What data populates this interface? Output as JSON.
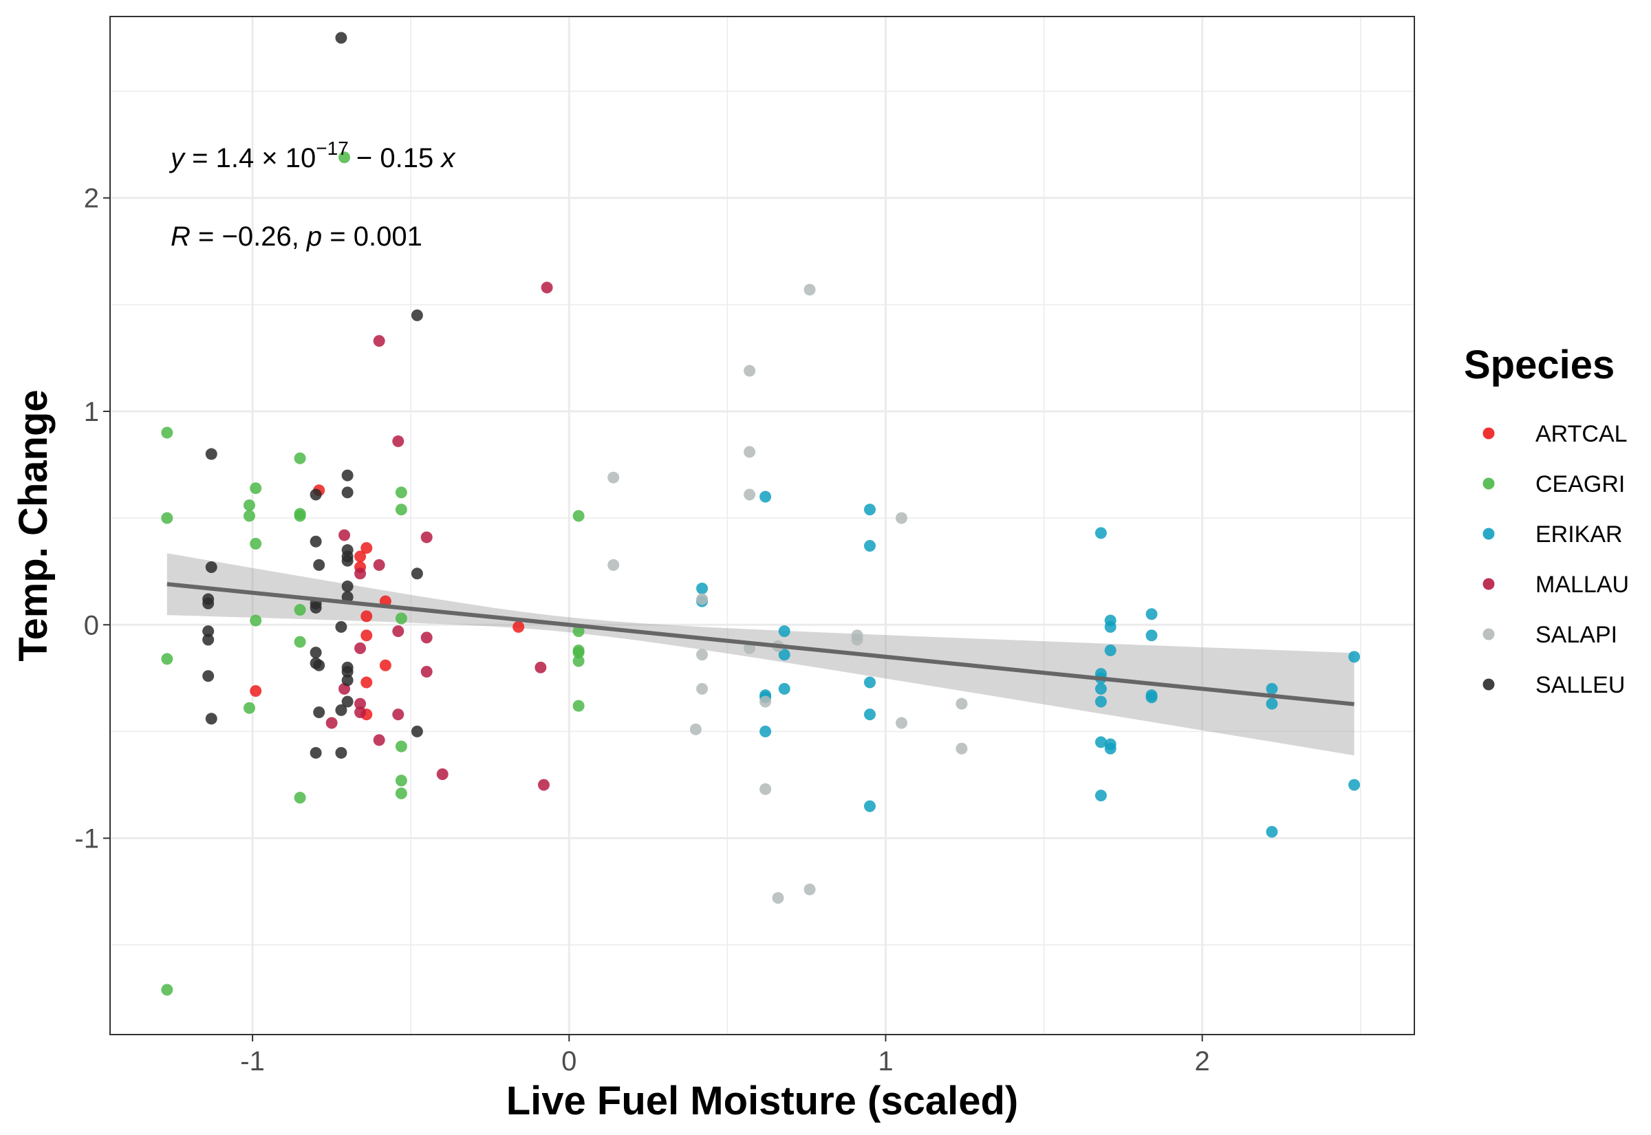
{
  "chart_data": {
    "type": "scatter",
    "xlabel": "Live Fuel Moisture (scaled)",
    "ylabel": "Temp. Change",
    "xlim": [
      -1.45,
      2.67
    ],
    "ylim": [
      -1.92,
      2.85
    ],
    "x_ticks": [
      -1,
      0,
      1,
      2
    ],
    "y_ticks": [
      -1,
      0,
      1,
      2
    ],
    "x_tick_labels": [
      "-1",
      "0",
      "1",
      "2"
    ],
    "y_tick_labels": [
      "-1",
      "0",
      "1",
      "2"
    ],
    "grid": true,
    "legend": {
      "title": "Species",
      "position": "right"
    },
    "annotation": {
      "equation": {
        "lhs": "y",
        "eq": " = 1.4 × 10",
        "exp": "−17",
        "rest": " − 0.15 ",
        "var": "x"
      },
      "stats": {
        "r": "R",
        "r_text": " = −0.26, ",
        "p": "p",
        "p_text": " = 0.001"
      }
    },
    "regression": {
      "intercept": 0.0,
      "slope": -0.15,
      "x_range": [
        -1.27,
        2.48
      ],
      "ci_low": [
        0.05,
        -0.62
      ],
      "ci_high": [
        0.34,
        -0.14
      ]
    },
    "series": [
      {
        "name": "ARTCAL",
        "color": "#ee1c1c",
        "points": [
          [
            -0.79,
            0.63
          ],
          [
            -0.66,
            0.32
          ],
          [
            -0.64,
            0.36
          ],
          [
            -0.66,
            0.27
          ],
          [
            -0.58,
            0.11
          ],
          [
            -0.64,
            0.04
          ],
          [
            -0.64,
            -0.05
          ],
          [
            -0.58,
            -0.19
          ],
          [
            -0.64,
            -0.27
          ],
          [
            -0.64,
            -0.42
          ],
          [
            -0.99,
            -0.31
          ],
          [
            -0.16,
            -0.01
          ]
        ]
      },
      {
        "name": "CEAGRI",
        "color": "#4cb848",
        "points": [
          [
            -1.27,
            0.9
          ],
          [
            -1.27,
            0.5
          ],
          [
            -1.27,
            -0.16
          ],
          [
            -1.27,
            -1.71
          ],
          [
            -1.01,
            0.56
          ],
          [
            -1.01,
            0.51
          ],
          [
            -0.99,
            0.64
          ],
          [
            -0.99,
            0.38
          ],
          [
            -0.99,
            0.02
          ],
          [
            -1.01,
            -0.39
          ],
          [
            -0.85,
            0.78
          ],
          [
            -0.85,
            0.52
          ],
          [
            -0.85,
            0.51
          ],
          [
            -0.85,
            0.07
          ],
          [
            -0.85,
            -0.08
          ],
          [
            -0.85,
            -0.81
          ],
          [
            -0.71,
            2.19
          ],
          [
            -0.53,
            0.62
          ],
          [
            -0.53,
            0.54
          ],
          [
            -0.53,
            0.03
          ],
          [
            -0.53,
            -0.57
          ],
          [
            -0.53,
            -0.73
          ],
          [
            -0.53,
            -0.79
          ],
          [
            0.03,
            0.51
          ],
          [
            0.03,
            -0.03
          ],
          [
            0.03,
            -0.12
          ],
          [
            0.03,
            -0.13
          ],
          [
            0.03,
            -0.17
          ],
          [
            0.03,
            -0.38
          ]
        ]
      },
      {
        "name": "ERIKAR",
        "color": "#12a0c0",
        "points": [
          [
            0.42,
            0.17
          ],
          [
            0.42,
            0.11
          ],
          [
            0.62,
            0.6
          ],
          [
            0.62,
            -0.33
          ],
          [
            0.62,
            -0.34
          ],
          [
            0.62,
            -0.5
          ],
          [
            0.68,
            -0.03
          ],
          [
            0.68,
            -0.14
          ],
          [
            0.68,
            -0.3
          ],
          [
            0.95,
            0.54
          ],
          [
            0.95,
            0.37
          ],
          [
            0.95,
            -0.27
          ],
          [
            0.95,
            -0.42
          ],
          [
            0.95,
            -0.85
          ],
          [
            1.68,
            0.43
          ],
          [
            1.68,
            -0.23
          ],
          [
            1.68,
            -0.25
          ],
          [
            1.68,
            -0.3
          ],
          [
            1.68,
            -0.36
          ],
          [
            1.68,
            -0.55
          ],
          [
            1.68,
            -0.8
          ],
          [
            1.71,
            0.02
          ],
          [
            1.71,
            -0.01
          ],
          [
            1.71,
            -0.12
          ],
          [
            1.71,
            -0.56
          ],
          [
            1.71,
            -0.58
          ],
          [
            1.84,
            0.05
          ],
          [
            1.84,
            -0.05
          ],
          [
            1.84,
            -0.33
          ],
          [
            1.84,
            -0.34
          ],
          [
            2.22,
            -0.3
          ],
          [
            2.22,
            -0.37
          ],
          [
            2.22,
            -0.97
          ],
          [
            2.48,
            -0.15
          ],
          [
            2.48,
            -0.75
          ]
        ]
      },
      {
        "name": "MALLAU",
        "color": "#b71c44",
        "points": [
          [
            -0.07,
            1.58
          ],
          [
            -0.6,
            1.33
          ],
          [
            -0.54,
            0.86
          ],
          [
            -0.45,
            0.41
          ],
          [
            -0.71,
            0.42
          ],
          [
            -0.6,
            0.28
          ],
          [
            -0.66,
            0.24
          ],
          [
            -0.54,
            -0.03
          ],
          [
            -0.45,
            -0.06
          ],
          [
            -0.66,
            -0.11
          ],
          [
            -0.45,
            -0.22
          ],
          [
            -0.71,
            -0.3
          ],
          [
            -0.66,
            -0.37
          ],
          [
            -0.66,
            -0.41
          ],
          [
            -0.54,
            -0.42
          ],
          [
            -0.75,
            -0.46
          ],
          [
            -0.6,
            -0.54
          ],
          [
            -0.4,
            -0.7
          ],
          [
            -0.09,
            -0.2
          ],
          [
            -0.08,
            -0.75
          ]
        ]
      },
      {
        "name": "SALAPI",
        "color": "#b2bab8",
        "points": [
          [
            0.76,
            1.57
          ],
          [
            0.57,
            1.19
          ],
          [
            0.57,
            0.81
          ],
          [
            0.57,
            0.61
          ],
          [
            0.14,
            0.69
          ],
          [
            0.14,
            0.28
          ],
          [
            1.05,
            0.5
          ],
          [
            0.42,
            0.12
          ],
          [
            0.42,
            -0.14
          ],
          [
            0.42,
            -0.3
          ],
          [
            0.57,
            -0.11
          ],
          [
            0.91,
            -0.05
          ],
          [
            0.91,
            -0.07
          ],
          [
            0.62,
            -0.36
          ],
          [
            0.4,
            -0.49
          ],
          [
            1.24,
            -0.37
          ],
          [
            1.05,
            -0.46
          ],
          [
            1.24,
            -0.58
          ],
          [
            0.62,
            -0.77
          ],
          [
            0.76,
            -1.24
          ],
          [
            0.66,
            -1.28
          ],
          [
            0.66,
            -0.1
          ]
        ]
      },
      {
        "name": "SALLEU",
        "color": "#2b2b2b",
        "points": [
          [
            -0.72,
            2.75
          ],
          [
            -0.48,
            1.45
          ],
          [
            -1.13,
            0.8
          ],
          [
            -0.7,
            0.7
          ],
          [
            -0.7,
            0.62
          ],
          [
            -0.8,
            0.61
          ],
          [
            -0.8,
            0.39
          ],
          [
            -0.7,
            0.35
          ],
          [
            -0.7,
            0.32
          ],
          [
            -0.7,
            0.3
          ],
          [
            -0.79,
            0.28
          ],
          [
            -1.13,
            0.27
          ],
          [
            -0.48,
            0.24
          ],
          [
            -0.7,
            0.18
          ],
          [
            -0.7,
            0.13
          ],
          [
            -1.14,
            0.12
          ],
          [
            -1.14,
            0.1
          ],
          [
            -0.8,
            0.1
          ],
          [
            -0.8,
            0.08
          ],
          [
            -0.72,
            -0.01
          ],
          [
            -1.14,
            -0.03
          ],
          [
            -1.14,
            -0.07
          ],
          [
            -0.8,
            -0.13
          ],
          [
            -0.8,
            -0.18
          ],
          [
            -0.79,
            -0.19
          ],
          [
            -0.7,
            -0.2
          ],
          [
            -0.7,
            -0.22
          ],
          [
            -1.14,
            -0.24
          ],
          [
            -0.7,
            -0.26
          ],
          [
            -0.7,
            -0.36
          ],
          [
            -0.72,
            -0.4
          ],
          [
            -0.79,
            -0.41
          ],
          [
            -1.13,
            -0.44
          ],
          [
            -0.48,
            -0.5
          ],
          [
            -0.8,
            -0.6
          ],
          [
            -0.72,
            -0.6
          ]
        ]
      }
    ]
  }
}
